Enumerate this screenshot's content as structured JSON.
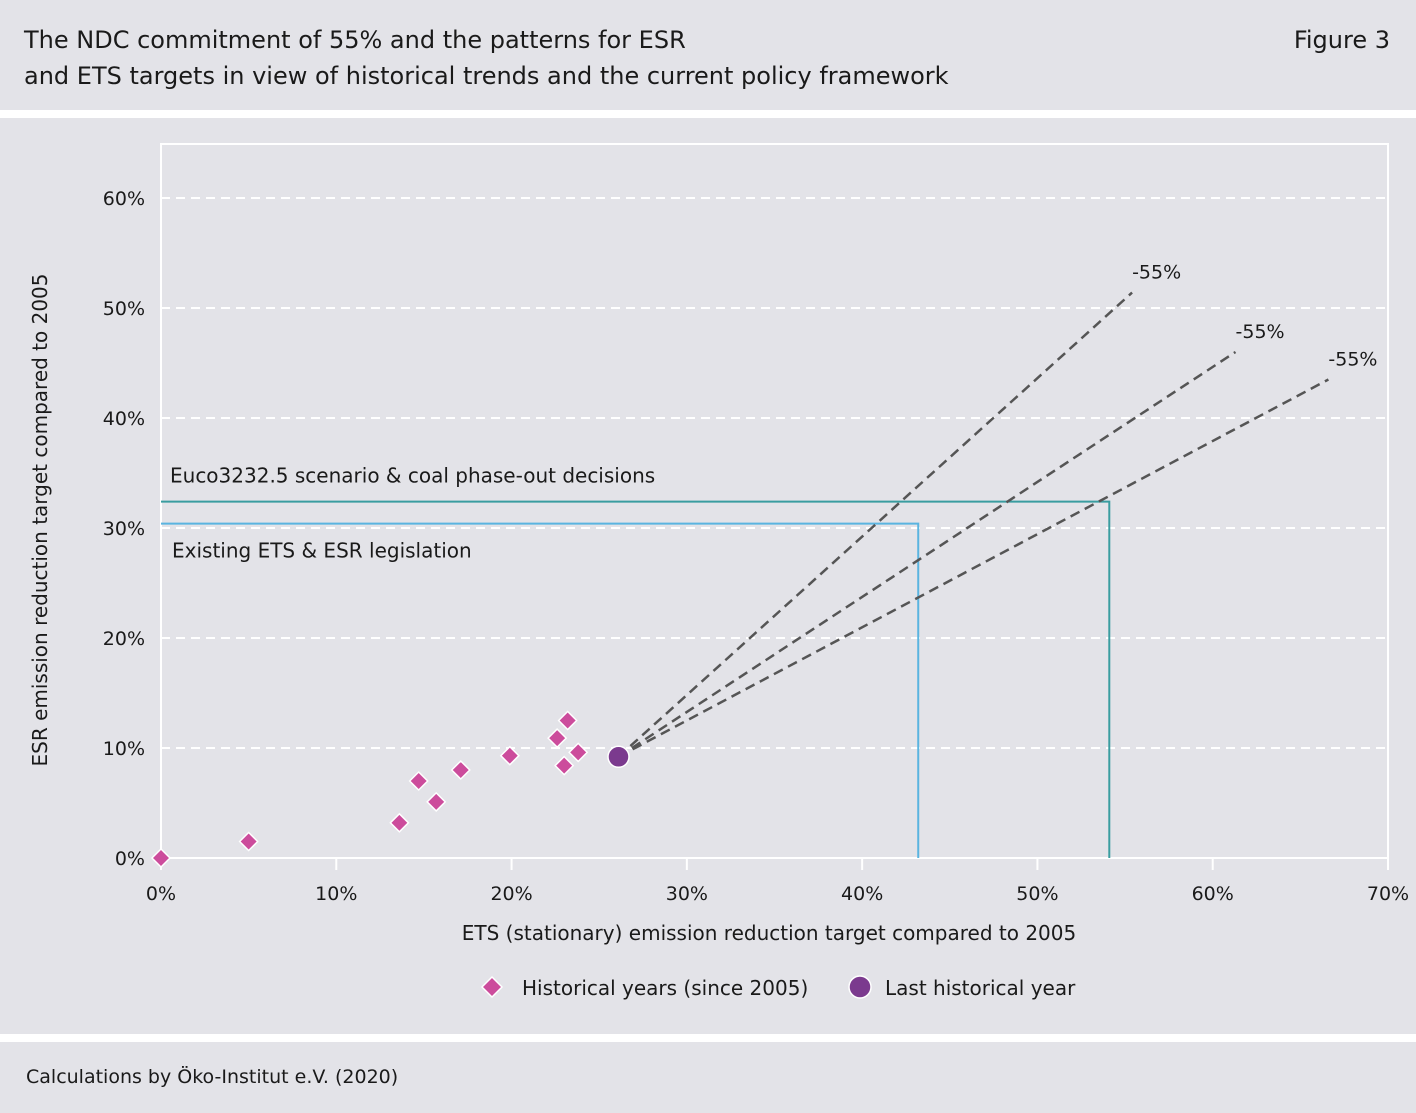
{
  "header": {
    "title_line1": "The NDC commitment of 55% and the patterns for ESR",
    "title_line2": "and ETS targets in view of historical trends and the current policy framework",
    "figure_label": "Figure 3"
  },
  "footer": {
    "source": "Calculations by Öko-Institut e.V. (2020)"
  },
  "colors": {
    "historical": "#cc4c9c",
    "last_year": "#7b3a8e",
    "existing_line": "#5ab4e0",
    "euco_line": "#3a9da0",
    "dashed": "#555555",
    "background": "#e3e3e8"
  },
  "chart_data": {
    "type": "scatter",
    "xlabel": "ETS (stationary) emission reduction target compared to 2005",
    "ylabel": "ESR emission reduction target compared to 2005",
    "xlim": [
      0,
      70
    ],
    "ylim": [
      0,
      65
    ],
    "x_ticks": [
      "0%",
      "10%",
      "20%",
      "30%",
      "40%",
      "50%",
      "60%",
      "70%"
    ],
    "y_ticks": [
      "0%",
      "10%",
      "20%",
      "30%",
      "40%",
      "50%",
      "60%"
    ],
    "grid": "horizontal dashed",
    "legend_position": "bottom",
    "series": [
      {
        "name": "Historical years (since 2005)",
        "marker": "diamond",
        "points": [
          {
            "x": 0.0,
            "y": 0.0
          },
          {
            "x": 5.0,
            "y": 1.5
          },
          {
            "x": 13.6,
            "y": 3.2
          },
          {
            "x": 14.7,
            "y": 7.0
          },
          {
            "x": 15.7,
            "y": 5.1
          },
          {
            "x": 17.1,
            "y": 8.0
          },
          {
            "x": 19.9,
            "y": 9.3
          },
          {
            "x": 22.6,
            "y": 10.9
          },
          {
            "x": 23.0,
            "y": 8.4
          },
          {
            "x": 23.2,
            "y": 12.5
          },
          {
            "x": 23.8,
            "y": 9.6
          }
        ]
      },
      {
        "name": "Last historical year",
        "marker": "circle",
        "points": [
          {
            "x": 26.1,
            "y": 9.2
          }
        ]
      }
    ],
    "dashed_lines": [
      {
        "label": "-55%",
        "from": {
          "x": 26.1,
          "y": 9.2
        },
        "to": {
          "x": 55.4,
          "y": 51.4
        }
      },
      {
        "label": "-55%",
        "from": {
          "x": 26.1,
          "y": 9.2
        },
        "to": {
          "x": 61.3,
          "y": 46.0
        }
      },
      {
        "label": "-55%",
        "from": {
          "x": 26.1,
          "y": 9.2
        },
        "to": {
          "x": 66.6,
          "y": 43.5
        }
      }
    ],
    "target_lines": [
      {
        "label": "Euco3232.5 scenario & coal phase-out decisions",
        "ets": 54.1,
        "esr": 32.4
      },
      {
        "label": "Existing ETS & ESR legislation",
        "ets": 43.2,
        "esr": 30.4
      }
    ]
  }
}
